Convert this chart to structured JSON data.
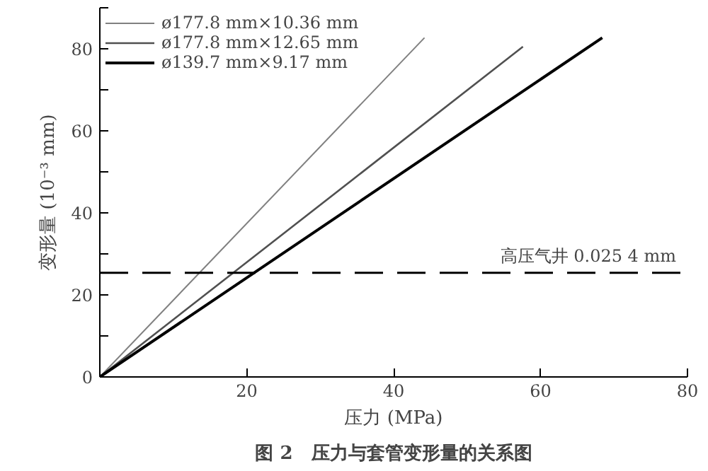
{
  "chart_data": {
    "type": "line",
    "title": "图 2　压力与套管变形量的关系图",
    "xlabel": "压力 (MPa)",
    "ylabel": "变形量 (10⁻³ mm)",
    "series": [
      {
        "name": "ø177.8 mm×10.36 mm",
        "color": "#808080",
        "x": [
          0,
          44.2
        ],
        "values": [
          0,
          82.7
        ]
      },
      {
        "name": "ø177.8 mm×12.65 mm",
        "color": "#505050",
        "x": [
          0,
          57.6
        ],
        "values": [
          0,
          80.5
        ]
      },
      {
        "name": "ø139.7 mm×9.17 mm",
        "color": "#000000",
        "x": [
          0,
          68.4
        ],
        "values": [
          0,
          82.7
        ]
      }
    ],
    "xlim": [
      0,
      80
    ],
    "ylim": [
      0,
      90
    ],
    "xticks": [
      {
        "value": 0,
        "label": null
      },
      20,
      40,
      60,
      80
    ],
    "yticks": [
      0,
      {
        "value": 10,
        "label": null
      },
      20,
      {
        "value": 30,
        "label": null
      },
      40,
      {
        "value": 50,
        "label": null
      },
      60,
      {
        "value": 70,
        "label": null
      },
      80,
      {
        "value": 90,
        "label": null
      }
    ],
    "ref_lines": [
      {
        "axis": "y",
        "value": 25.4,
        "label": "高压气井 0.025 4 mm",
        "color": "#000000",
        "line_style": "dashed"
      }
    ],
    "grid": false,
    "legend": "top left",
    "marker": "none",
    "line_style": "solid"
  }
}
